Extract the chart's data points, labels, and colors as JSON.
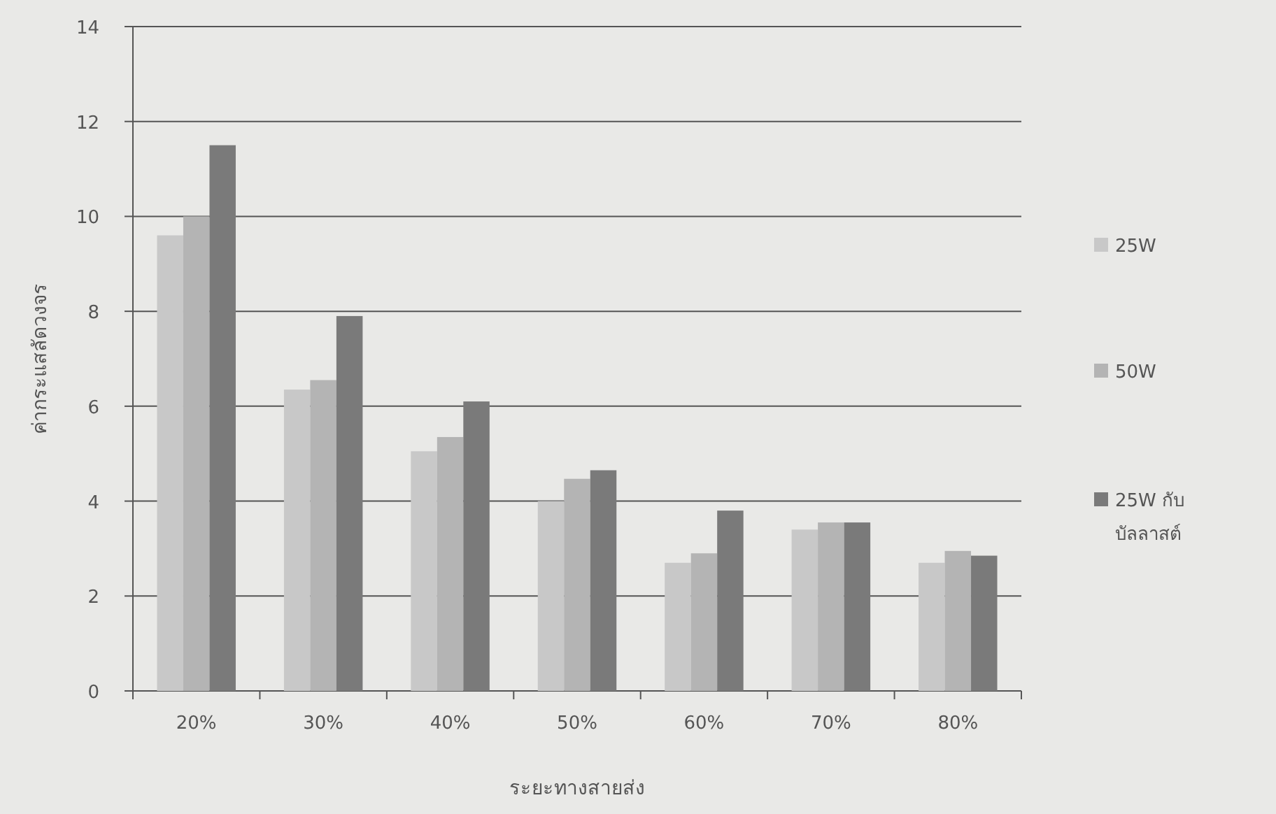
{
  "chart_data": {
    "type": "bar",
    "xlabel": "ระยะทางสายส่ง",
    "ylabel": "ค่ากระแสลัดวงจร",
    "categories": [
      "20%",
      "30%",
      "40%",
      "50%",
      "60%",
      "70%",
      "80%"
    ],
    "series": [
      {
        "name": "25W",
        "color": "#c8c8c8",
        "values": [
          9.6,
          6.35,
          5.05,
          4.0,
          2.7,
          3.4,
          2.7
        ]
      },
      {
        "name": "50W",
        "color": "#b4b4b4",
        "values": [
          10.0,
          6.55,
          5.35,
          4.47,
          2.9,
          3.55,
          2.95
        ]
      },
      {
        "name": "25W กับ บัลลาสต์",
        "color": "#7a7a7a",
        "values": [
          11.5,
          7.9,
          6.1,
          4.65,
          3.8,
          3.55,
          2.85
        ]
      }
    ],
    "ylim": [
      0,
      14
    ],
    "yticks": [
      0,
      2,
      4,
      6,
      8,
      10,
      12,
      14
    ],
    "grid": "y",
    "legend": "right"
  }
}
